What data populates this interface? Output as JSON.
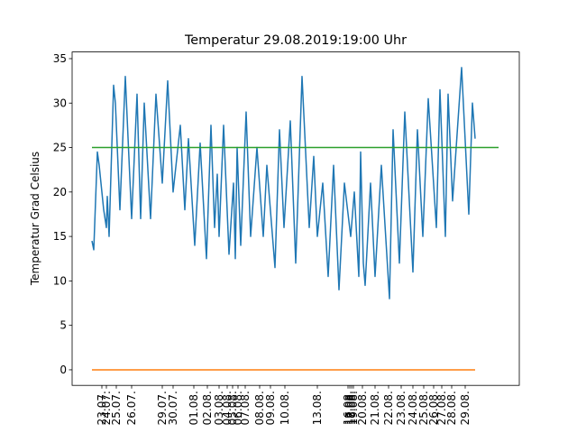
{
  "chart_data": {
    "type": "line",
    "title": "Temperatur 29.08.2019:19:00 Uhr",
    "ylabel": "Temperatur Grad Celsius",
    "xlim": [
      -22,
      474
    ],
    "ylim": [
      -1.75,
      35.75
    ],
    "yticks": [
      0,
      5,
      10,
      15,
      20,
      25,
      30,
      35
    ],
    "xticks": [
      {
        "value": 11,
        "label": "23.07."
      },
      {
        "value": 16,
        "label": "24.07."
      },
      {
        "value": 27,
        "label": "25.07."
      },
      {
        "value": 44,
        "label": "26.07."
      },
      {
        "value": 78,
        "label": "29.07."
      },
      {
        "value": 90,
        "label": "30.07."
      },
      {
        "value": 113,
        "label": "01.08."
      },
      {
        "value": 128,
        "label": "02.08."
      },
      {
        "value": 141,
        "label": "03.08."
      },
      {
        "value": 150,
        "label": "04.08."
      },
      {
        "value": 156,
        "label": "05.08."
      },
      {
        "value": 162,
        "label": "06.08."
      },
      {
        "value": 170,
        "label": "07.08."
      },
      {
        "value": 186,
        "label": "08.08."
      },
      {
        "value": 198,
        "label": "09.08."
      },
      {
        "value": 214,
        "label": "10.08."
      },
      {
        "value": 250,
        "label": "13.08."
      },
      {
        "value": 284,
        "label": "16.08."
      },
      {
        "value": 286,
        "label": "17.08."
      },
      {
        "value": 288,
        "label": "18.08."
      },
      {
        "value": 290,
        "label": "19.08."
      },
      {
        "value": 300,
        "label": "20.08."
      },
      {
        "value": 314,
        "label": "21.08."
      },
      {
        "value": 329,
        "label": "22.08."
      },
      {
        "value": 343,
        "label": "23.08."
      },
      {
        "value": 356,
        "label": "24.08."
      },
      {
        "value": 368,
        "label": "25.08."
      },
      {
        "value": 379,
        "label": "26.08."
      },
      {
        "value": 388,
        "label": "27.08."
      },
      {
        "value": 399,
        "label": "28.08."
      },
      {
        "value": 414,
        "label": "29.08."
      }
    ],
    "series": [
      {
        "color": "#1f77b4",
        "x": [
          0,
          2,
          6,
          8,
          13,
          16,
          17,
          19,
          24,
          26,
          31,
          37,
          44,
          50,
          54,
          58,
          65,
          71,
          78,
          84,
          90,
          98,
          103,
          107,
          114,
          120,
          127,
          132,
          136,
          139,
          141,
          146,
          152,
          157,
          159,
          161,
          165,
          171,
          176,
          183,
          190,
          194,
          203,
          208,
          213,
          220,
          226,
          233,
          241,
          246,
          250,
          256,
          262,
          268,
          274,
          280,
          287,
          291,
          296,
          298,
          301,
          303,
          309,
          314,
          321,
          330,
          334,
          341,
          347,
          356,
          361,
          367,
          373,
          382,
          386,
          392,
          395,
          400,
          410,
          418,
          422,
          425
        ],
        "values": [
          14.5,
          13.5,
          24.5,
          23,
          18,
          16,
          19.5,
          15,
          32,
          30,
          18,
          33,
          17,
          31,
          17,
          30,
          17,
          31,
          21,
          32.5,
          20,
          27.5,
          18,
          26,
          14,
          25.5,
          12.5,
          27.5,
          16,
          22,
          15,
          27.5,
          13,
          21,
          12.5,
          25,
          14,
          29,
          15,
          25,
          15,
          23,
          11.5,
          27,
          16,
          28,
          12,
          33,
          16,
          24,
          15,
          21,
          10.5,
          23,
          9,
          21,
          15,
          20,
          10.5,
          24.5,
          12,
          9.5,
          21,
          10.5,
          23,
          8,
          27,
          12,
          29,
          11,
          27,
          15,
          30.5,
          16,
          31.5,
          15,
          31,
          19,
          34,
          17.5,
          30,
          26
        ]
      },
      {
        "color": "#ff7f0e",
        "x": [
          0,
          425
        ],
        "values": [
          0,
          0
        ]
      },
      {
        "color": "#2ca02c",
        "x": [
          0,
          451
        ],
        "values": [
          25,
          25
        ]
      }
    ]
  }
}
